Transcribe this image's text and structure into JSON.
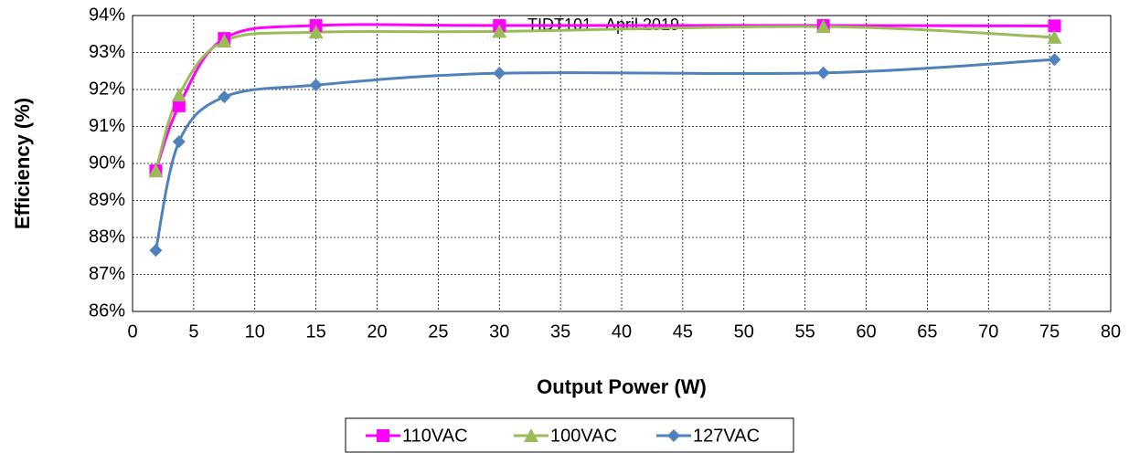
{
  "chart_data": {
    "type": "line",
    "annotation": "TIDT101 - April 2019",
    "x_label": "Output Power (W)",
    "y_label": "Efficiency (%)",
    "x": [
      1.9,
      3.8,
      7.5,
      15,
      30,
      56.5,
      75.4
    ],
    "series": [
      {
        "name": "110VAC",
        "color": "#ff00ff",
        "marker": "square",
        "values": [
          89.8,
          91.56,
          93.38,
          93.73,
          93.73,
          93.73,
          93.72
        ]
      },
      {
        "name": "100VAC",
        "color": "#9bbb59",
        "marker": "triangle",
        "values": [
          89.8,
          91.85,
          93.31,
          93.55,
          93.57,
          93.7,
          93.41
        ]
      },
      {
        "name": "127VAC",
        "color": "#4f81bd",
        "marker": "diamond",
        "values": [
          87.65,
          90.59,
          91.8,
          92.12,
          92.44,
          92.45,
          92.81
        ]
      }
    ],
    "xlim": [
      0,
      80
    ],
    "xticks": [
      0,
      5,
      10,
      15,
      20,
      25,
      30,
      35,
      40,
      45,
      50,
      55,
      60,
      65,
      70,
      75,
      80
    ],
    "ylim": [
      86,
      94
    ],
    "yticks": [
      {
        "value": 86,
        "label": "86%"
      },
      {
        "value": 87,
        "label": "87%"
      },
      {
        "value": 88,
        "label": "88%"
      },
      {
        "value": 89,
        "label": "89%"
      },
      {
        "value": 90,
        "label": "90%"
      },
      {
        "value": 91,
        "label": "91%"
      },
      {
        "value": 92,
        "label": "92%"
      },
      {
        "value": 93,
        "label": "93%"
      },
      {
        "value": 94,
        "label": "94%"
      }
    ],
    "grid": true,
    "legend": "bottom"
  }
}
